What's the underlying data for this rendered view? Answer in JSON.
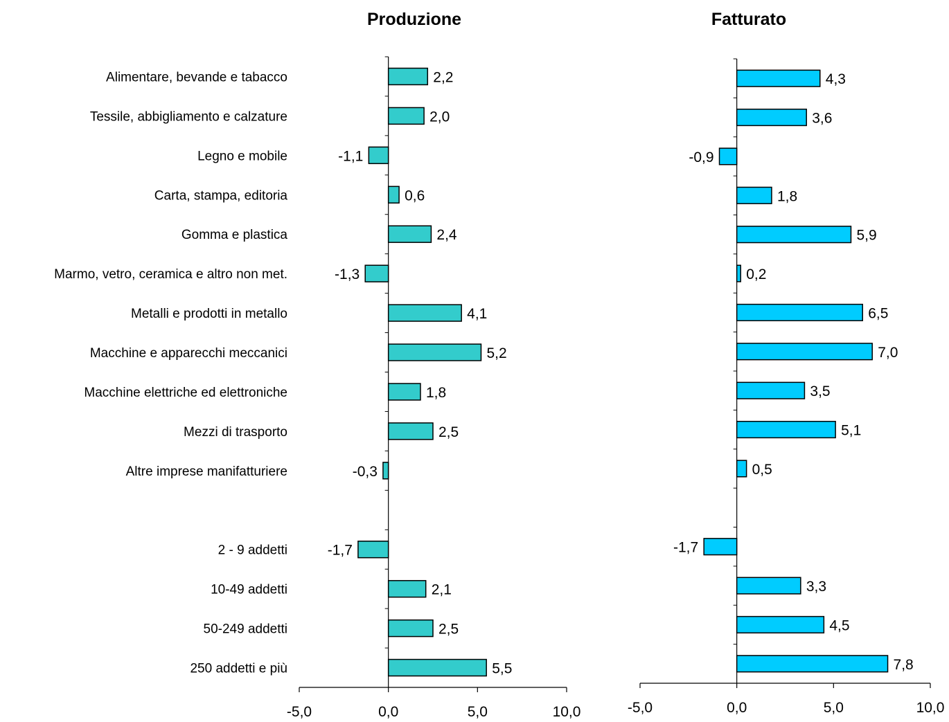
{
  "chart_data": [
    {
      "type": "bar",
      "orientation": "horizontal",
      "title": "Produzione",
      "categories": [
        "Alimentare, bevande e tabacco",
        "Tessile, abbigliamento e calzature",
        "Legno e mobile",
        "Carta, stampa, editoria",
        "Gomma e plastica",
        "Marmo, vetro, ceramica e altro non met.",
        "Metalli e prodotti in metallo",
        "Macchine e apparecchi meccanici",
        "Macchine elettriche ed elettroniche",
        "Mezzi di trasporto",
        "Altre imprese manifatturiere",
        "",
        "2 - 9 addetti",
        "10-49 addetti",
        "50-249 addetti",
        "250 addetti e più"
      ],
      "values": [
        2.2,
        2.0,
        -1.1,
        0.6,
        2.4,
        -1.3,
        4.1,
        5.2,
        1.8,
        2.5,
        -0.3,
        null,
        -1.7,
        2.1,
        2.5,
        5.5
      ],
      "data_labels": [
        "2,2",
        "2,0",
        "-1,1",
        "0,6",
        "2,4",
        "-1,3",
        "4,1",
        "5,2",
        "1,8",
        "2,5",
        "-0,3",
        "",
        "-1,7",
        "2,1",
        "2,5",
        "5,5"
      ],
      "xlim": [
        -5,
        10
      ],
      "x_ticks": [
        -5,
        0,
        5,
        10
      ],
      "x_tick_labels": [
        "-5,0",
        "0,0",
        "5,0",
        "10,0"
      ],
      "bar_color": "#33CCCC",
      "grid": false
    },
    {
      "type": "bar",
      "orientation": "horizontal",
      "title": "Fatturato",
      "values": [
        4.3,
        3.6,
        -0.9,
        1.8,
        5.9,
        0.2,
        6.5,
        7.0,
        3.5,
        5.1,
        0.5,
        null,
        -1.7,
        3.3,
        4.5,
        7.8
      ],
      "data_labels": [
        "4,3",
        "3,6",
        "-0,9",
        "1,8",
        "5,9",
        "0,2",
        "6,5",
        "7,0",
        "3,5",
        "5,1",
        "0,5",
        "",
        "-1,7",
        "3,3",
        "4,5",
        "7,8"
      ],
      "xlim": [
        -5,
        10
      ],
      "x_ticks": [
        -5,
        0,
        5,
        10
      ],
      "x_tick_labels": [
        "-5,0",
        "0,0",
        "5,0",
        "10,0"
      ],
      "bar_color": "#00CCFF",
      "grid": false
    }
  ]
}
